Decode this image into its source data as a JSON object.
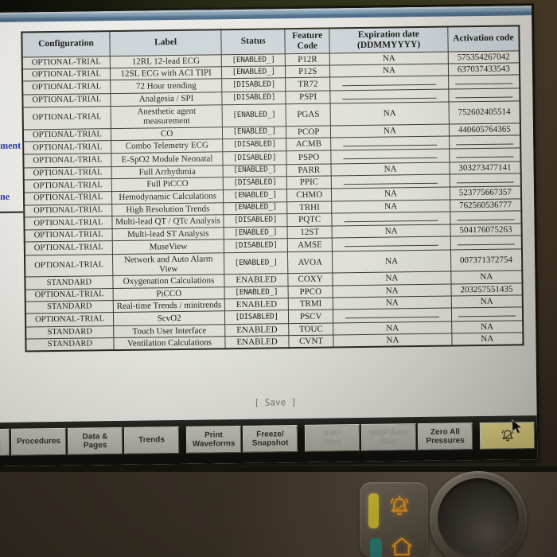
{
  "window": {
    "save_label": "[ Save ]"
  },
  "menu_fragments": [
    {
      "text": "ment"
    },
    {
      "text": "ne"
    }
  ],
  "table": {
    "headers": [
      "Configuration",
      "Label",
      "Status",
      "Feature\nCode",
      "Expiration date\n(DDMMYYYY)",
      "Activation code"
    ],
    "rows": [
      {
        "config": "OPTIONAL-TRIAL",
        "label": "12RL 12-lead ECG",
        "status": "[ENABLED_]",
        "code": "P12R",
        "expiration": "NA",
        "activation": "575354267042"
      },
      {
        "config": "OPTIONAL-TRIAL",
        "label": "12SL ECG with ACI TIPI",
        "status": "[ENABLED_]",
        "code": "P12S",
        "expiration": "NA",
        "activation": "637037433543"
      },
      {
        "config": "OPTIONAL-TRIAL",
        "label": "72 Hour trending",
        "status": "[DISABLED]",
        "code": "TR72",
        "expiration": "",
        "activation": ""
      },
      {
        "config": "OPTIONAL-TRIAL",
        "label": "Analgesia / SPI",
        "status": "[DISABLED]",
        "code": "PSPI",
        "expiration": "",
        "activation": ""
      },
      {
        "config": "OPTIONAL-TRIAL",
        "label": "Anesthetic agent measurement",
        "status": "[ENABLED_]",
        "code": "PGAS",
        "expiration": "NA",
        "activation": "752602405514"
      },
      {
        "config": "OPTIONAL-TRIAL",
        "label": "CO",
        "status": "[ENABLED_]",
        "code": "PCOP",
        "expiration": "NA",
        "activation": "440605764365"
      },
      {
        "config": "OPTIONAL-TRIAL",
        "label": "Combo Telemetry ECG",
        "status": "[DISABLED]",
        "code": "ACMB",
        "expiration": "",
        "activation": ""
      },
      {
        "config": "OPTIONAL-TRIAL",
        "label": "E-SpO2 Module Neonatal",
        "status": "[DISABLED]",
        "code": "PSPO",
        "expiration": "",
        "activation": ""
      },
      {
        "config": "OPTIONAL-TRIAL",
        "label": "Full Arrhythmia",
        "status": "[ENABLED_]",
        "code": "PARR",
        "expiration": "NA",
        "activation": "303273477141"
      },
      {
        "config": "OPTIONAL-TRIAL",
        "label": "Full PiCCO",
        "status": "[DISABLED]",
        "code": "PPIC",
        "expiration": "",
        "activation": ""
      },
      {
        "config": "OPTIONAL-TRIAL",
        "label": "Hemodynamic Calculations",
        "status": "[ENABLED_]",
        "code": "CHMO",
        "expiration": "NA",
        "activation": "523775667357"
      },
      {
        "config": "OPTIONAL-TRIAL",
        "label": "High Resolution Trends",
        "status": "[ENABLED_]",
        "code": "TRHI",
        "expiration": "NA",
        "activation": "762560536777"
      },
      {
        "config": "OPTIONAL-TRIAL",
        "label": "Multi-lead QT / QTc Analysis",
        "status": "[DISABLED]",
        "code": "PQTC",
        "expiration": "",
        "activation": ""
      },
      {
        "config": "OPTIONAL-TRIAL",
        "label": "Multi-lead ST Analysis",
        "status": "[ENABLED_]",
        "code": "12ST",
        "expiration": "NA",
        "activation": "504176075263"
      },
      {
        "config": "OPTIONAL-TRIAL",
        "label": "MuseView",
        "status": "[DISABLED]",
        "code": "AMSE",
        "expiration": "",
        "activation": ""
      },
      {
        "config": "OPTIONAL-TRIAL",
        "label": "Network and Auto Alarm View",
        "status": "[ENABLED_]",
        "code": "AVOA",
        "expiration": "NA",
        "activation": "007371372754"
      },
      {
        "config": "STANDARD",
        "label": "Oxygenation Calculations",
        "status": "ENABLED",
        "code": "COXY",
        "expiration": "NA",
        "activation": "NA"
      },
      {
        "config": "OPTIONAL-TRIAL",
        "label": "PiCCO",
        "status": "[ENABLED_]",
        "code": "PPCO",
        "expiration": "NA",
        "activation": "203257551435"
      },
      {
        "config": "STANDARD",
        "label": "Real-time Trends / minitrends",
        "status": "ENABLED",
        "code": "TRMI",
        "expiration": "NA",
        "activation": "NA"
      },
      {
        "config": "OPTIONAL-TRIAL",
        "label": "ScvO2",
        "status": "[DISABLED]",
        "code": "PSCV",
        "expiration": "",
        "activation": ""
      },
      {
        "config": "STANDARD",
        "label": "Touch User Interface",
        "status": "ENABLED",
        "code": "TOUC",
        "expiration": "NA",
        "activation": "NA"
      },
      {
        "config": "STANDARD",
        "label": "Ventilation Calculations",
        "status": "ENABLED",
        "code": "CVNT",
        "expiration": "NA",
        "activation": "NA"
      }
    ]
  },
  "toolbar": {
    "buttons": [
      {
        "label": "",
        "kind": "partial",
        "name": "edge-button"
      },
      {
        "label": "Procedures",
        "kind": "normal",
        "name": "procedures-button"
      },
      {
        "label": "Data &\nPages",
        "kind": "normal",
        "name": "data-pages-button"
      },
      {
        "label": "Trends",
        "kind": "normal",
        "name": "trends-button"
      },
      {
        "label": "Print\nWaveforms",
        "kind": "gap",
        "name": "print-waveforms-button"
      },
      {
        "label": "Freeze/\nSnapshot",
        "kind": "normal",
        "name": "freeze-snapshot-button"
      },
      {
        "label": "NIBP\nStart",
        "kind": "gap disabled",
        "name": "nibp-start-button"
      },
      {
        "label": "NIBP Auto\nStart",
        "kind": "disabled",
        "name": "nibp-auto-start-button"
      },
      {
        "label": "Zero All\nPressures",
        "kind": "normal",
        "name": "zero-all-pressures-button"
      },
      {
        "label": "",
        "kind": "gap alarm",
        "name": "alarm-silence-button",
        "icon": "alarm-bell-icon"
      }
    ]
  },
  "bezel": {
    "icons": [
      "alarm-bell-rays-icon",
      "home-icon"
    ],
    "controls": [
      "trim-knob"
    ]
  },
  "colors": {
    "titlebar_blue": "#54738f",
    "alarm_button_bg": "#d9cc80",
    "icon_orange": "#f89b1c",
    "strip_yellow": "#d4c231",
    "strip_teal": "#2b837b",
    "header_bg": "#cdd5da"
  }
}
